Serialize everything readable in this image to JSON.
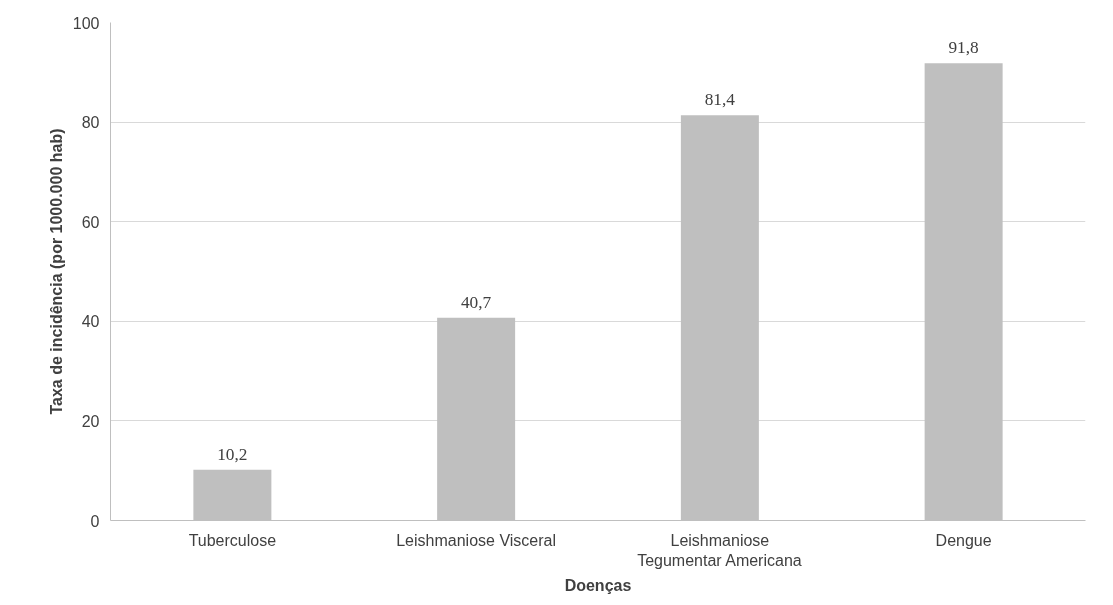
{
  "chart_data": {
    "type": "bar",
    "xlabel": "Doenças",
    "ylabel": "Taxa de incidência (por 1000.000 hab)",
    "categories": [
      "Tuberculose",
      "Leishmaniose Visceral",
      "Leishmaniose Tegumentar Americana",
      "Dengue"
    ],
    "values": [
      10.2,
      40.7,
      81.4,
      91.8
    ],
    "value_labels": [
      "10,2",
      "40,7",
      "81,4",
      "91,8"
    ],
    "color": "#bfbfbf",
    "ylim": [
      0,
      100
    ],
    "yticks": [
      0,
      20,
      40,
      60,
      80,
      100
    ],
    "grid": "y"
  }
}
